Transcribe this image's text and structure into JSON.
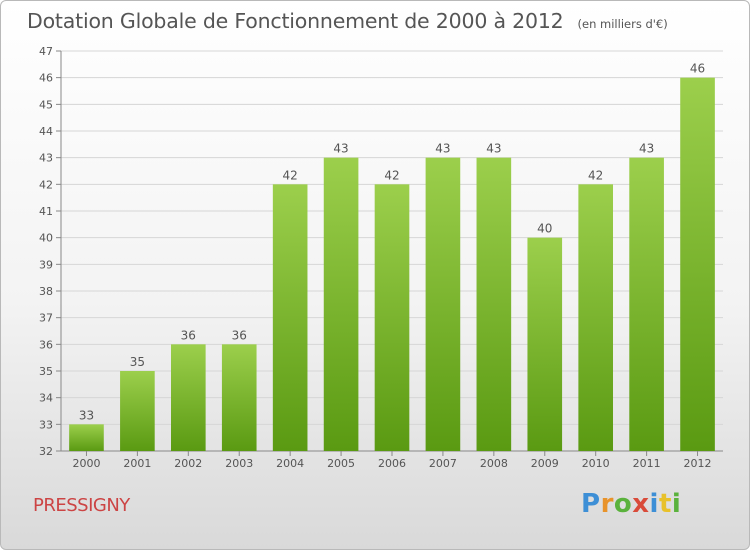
{
  "header": {
    "title": "Dotation Globale de Fonctionnement de 2000 à 2012",
    "unit": "(en milliers d'€)"
  },
  "footer": {
    "town": "PRESSIGNY",
    "logo_text": "Proxiti"
  },
  "colors": {
    "bar_top": "#9ccf4c",
    "bar_bottom": "#5a9a12",
    "text": "#555555",
    "town": "#cc4444",
    "grid": "#d6d6d6"
  },
  "chart_data": {
    "type": "bar",
    "categories": [
      "2000",
      "2001",
      "2002",
      "2003",
      "2004",
      "2005",
      "2006",
      "2007",
      "2008",
      "2009",
      "2010",
      "2011",
      "2012"
    ],
    "values": [
      33,
      35,
      36,
      36,
      42,
      43,
      42,
      43,
      43,
      40,
      42,
      43,
      46
    ],
    "title": "Dotation Globale de Fonctionnement de 2000 à 2012",
    "subtitle": "(en milliers d'€)",
    "xlabel": "",
    "ylabel": "",
    "ylim": [
      32,
      47
    ],
    "yticks": [
      32,
      33,
      34,
      35,
      36,
      37,
      38,
      39,
      40,
      41,
      42,
      43,
      44,
      45,
      46,
      47
    ],
    "grid": true,
    "legend": "none"
  }
}
